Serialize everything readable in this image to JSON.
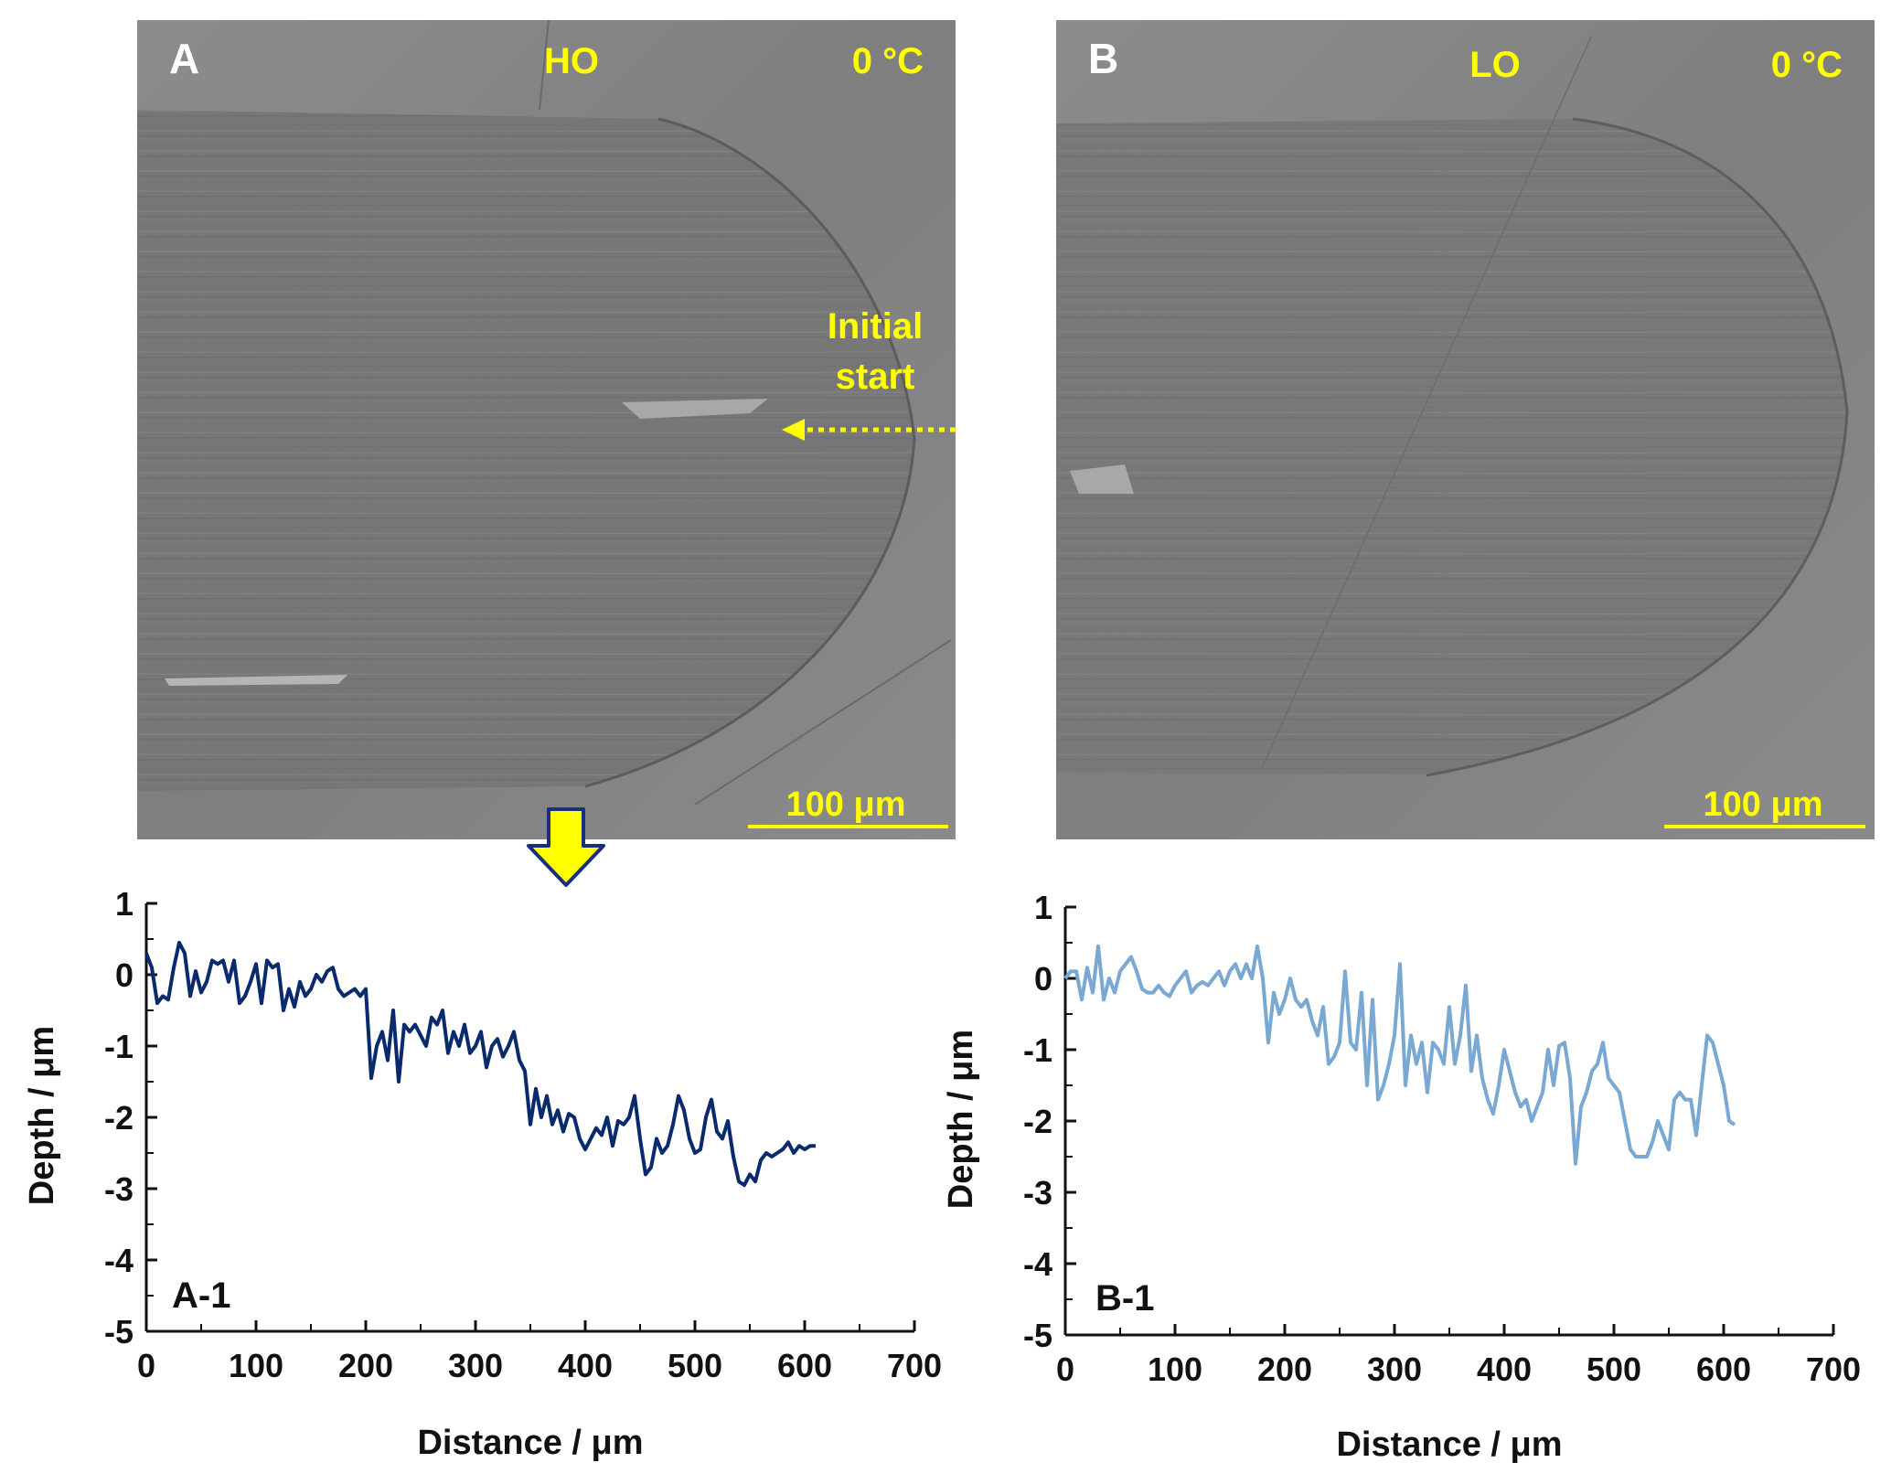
{
  "colors": {
    "label_yellow": "#ffff00",
    "sem_background": "#8a8a8a",
    "series_A": "#0a2a6e",
    "series_B": "#79a8d3"
  },
  "panels": [
    {
      "letter": "A",
      "sample": "HO",
      "temperature": "0 °C",
      "scale_bar": "100 μm",
      "annotation": [
        "Initial",
        "start"
      ]
    },
    {
      "letter": "B",
      "sample": "LO",
      "temperature": "0 °C",
      "scale_bar": "100 μm"
    }
  ],
  "chart_data": [
    {
      "type": "line",
      "panel_label": "A-1",
      "xlabel": "Distance / μm",
      "ylabel": "Depth / μm",
      "xlim": [
        0,
        700
      ],
      "ylim": [
        -5,
        1
      ],
      "xticks": [
        "0",
        "100",
        "200",
        "300",
        "400",
        "500",
        "600",
        "700"
      ],
      "yticks": [
        "1",
        "0",
        "-1",
        "-2",
        "-3",
        "-4",
        "-5"
      ],
      "color": "#0a2a6e",
      "series": [
        {
          "x": [
            0,
            5,
            10,
            15,
            20,
            25,
            30,
            35,
            40,
            45,
            50,
            55,
            60,
            65,
            70,
            75,
            80,
            85,
            90,
            95,
            100,
            105,
            110,
            115,
            120,
            125,
            130,
            135,
            140,
            145,
            150,
            155,
            160,
            165,
            170,
            175,
            180,
            185,
            190,
            195,
            200,
            205,
            210,
            215,
            220,
            225,
            230,
            235,
            240,
            245,
            250,
            255,
            260,
            265,
            270,
            275,
            280,
            285,
            290,
            295,
            300,
            305,
            310,
            315,
            320,
            325,
            330,
            335,
            340,
            345,
            350,
            355,
            360,
            365,
            370,
            375,
            380,
            385,
            390,
            395,
            400,
            405,
            410,
            415,
            420,
            425,
            430,
            435,
            440,
            445,
            450,
            455,
            460,
            465,
            470,
            475,
            480,
            485,
            490,
            495,
            500,
            505,
            510,
            515,
            520,
            525,
            530,
            535,
            540,
            545,
            550,
            555,
            560,
            565,
            570,
            575,
            580,
            585,
            590,
            595,
            600,
            605,
            610
          ],
          "y": [
            0.3,
            0.1,
            -0.4,
            -0.3,
            -0.35,
            0.1,
            0.45,
            0.3,
            -0.3,
            0.05,
            -0.25,
            -0.1,
            0.2,
            0.15,
            0.2,
            -0.1,
            0.2,
            -0.4,
            -0.3,
            -0.1,
            0.15,
            -0.4,
            0.2,
            0.1,
            0.15,
            -0.5,
            -0.2,
            -0.45,
            -0.1,
            -0.3,
            -0.2,
            0.0,
            -0.1,
            0.05,
            0.1,
            -0.2,
            -0.3,
            -0.25,
            -0.2,
            -0.3,
            -0.2,
            -1.45,
            -1.0,
            -0.8,
            -1.2,
            -0.5,
            -1.5,
            -0.7,
            -0.8,
            -0.7,
            -0.85,
            -1.0,
            -0.6,
            -0.7,
            -0.5,
            -1.1,
            -0.8,
            -1.0,
            -0.7,
            -1.1,
            -1.0,
            -0.8,
            -1.3,
            -1.0,
            -0.9,
            -1.15,
            -1.0,
            -0.8,
            -1.2,
            -1.35,
            -2.1,
            -1.6,
            -2.0,
            -1.7,
            -2.1,
            -1.9,
            -2.2,
            -1.95,
            -2.0,
            -2.3,
            -2.45,
            -2.3,
            -2.15,
            -2.25,
            -2.0,
            -2.4,
            -2.05,
            -2.1,
            -2.0,
            -1.7,
            -2.3,
            -2.8,
            -2.7,
            -2.3,
            -2.5,
            -2.4,
            -2.1,
            -1.7,
            -1.9,
            -2.3,
            -2.5,
            -2.45,
            -2.0,
            -1.75,
            -2.2,
            -2.3,
            -2.05,
            -2.55,
            -2.9,
            -2.95,
            -2.8,
            -2.9,
            -2.6,
            -2.5,
            -2.55,
            -2.5,
            -2.45,
            -2.35,
            -2.5,
            -2.4,
            -2.45,
            -2.4,
            -2.4
          ]
        }
      ]
    },
    {
      "type": "line",
      "panel_label": "B-1",
      "xlabel": "Distance / μm",
      "ylabel": "Depth / μm",
      "xlim": [
        0,
        700
      ],
      "ylim": [
        -5,
        1
      ],
      "xticks": [
        "0",
        "100",
        "200",
        "300",
        "400",
        "500",
        "600",
        "700"
      ],
      "yticks": [
        "1",
        "0",
        "-1",
        "-2",
        "-3",
        "-4",
        "-5"
      ],
      "color": "#79a8d3",
      "series": [
        {
          "x": [
            0,
            5,
            10,
            15,
            20,
            25,
            30,
            35,
            40,
            45,
            50,
            55,
            60,
            65,
            70,
            75,
            80,
            85,
            90,
            95,
            100,
            105,
            110,
            115,
            120,
            125,
            130,
            135,
            140,
            145,
            150,
            155,
            160,
            165,
            170,
            175,
            180,
            185,
            190,
            195,
            200,
            205,
            210,
            215,
            220,
            225,
            230,
            235,
            240,
            245,
            250,
            255,
            260,
            265,
            270,
            275,
            280,
            285,
            290,
            295,
            300,
            305,
            310,
            315,
            320,
            325,
            330,
            335,
            340,
            345,
            350,
            355,
            360,
            365,
            370,
            375,
            380,
            385,
            390,
            395,
            400,
            405,
            410,
            415,
            420,
            425,
            430,
            435,
            440,
            445,
            450,
            455,
            460,
            465,
            470,
            475,
            480,
            485,
            490,
            495,
            500,
            505,
            510,
            515,
            520,
            525,
            530,
            535,
            540,
            545,
            550,
            555,
            560,
            565,
            570,
            575,
            580,
            585,
            590,
            595,
            600,
            605,
            610
          ],
          "y": [
            0.0,
            0.1,
            0.1,
            -0.3,
            0.15,
            -0.2,
            0.45,
            -0.3,
            0.0,
            -0.2,
            0.1,
            0.2,
            0.3,
            0.1,
            -0.15,
            -0.2,
            -0.2,
            -0.1,
            -0.2,
            -0.25,
            -0.1,
            0.0,
            0.1,
            -0.2,
            -0.1,
            -0.05,
            -0.1,
            0.0,
            0.1,
            -0.1,
            0.1,
            0.2,
            0.0,
            0.2,
            0.0,
            0.45,
            0.0,
            -0.9,
            -0.2,
            -0.5,
            -0.3,
            0.0,
            -0.3,
            -0.4,
            -0.3,
            -0.6,
            -0.8,
            -0.4,
            -1.2,
            -1.1,
            -0.9,
            0.1,
            -0.9,
            -1.0,
            -0.2,
            -1.5,
            -0.3,
            -1.7,
            -1.5,
            -1.2,
            -0.8,
            0.2,
            -1.5,
            -0.8,
            -1.2,
            -0.9,
            -1.6,
            -0.9,
            -1.0,
            -1.2,
            -0.4,
            -1.2,
            -0.8,
            -0.1,
            -1.3,
            -0.8,
            -1.4,
            -1.7,
            -1.9,
            -1.5,
            -1.0,
            -1.3,
            -1.6,
            -1.8,
            -1.7,
            -2.0,
            -1.8,
            -1.6,
            -1.0,
            -1.5,
            -0.95,
            -0.9,
            -1.4,
            -2.6,
            -1.8,
            -1.6,
            -1.3,
            -1.2,
            -0.9,
            -1.4,
            -1.5,
            -1.6,
            -2.0,
            -2.4,
            -2.5,
            -2.5,
            -2.5,
            -2.3,
            -2.0,
            -2.2,
            -2.4,
            -1.7,
            -1.6,
            -1.7,
            -1.7,
            -2.2,
            -1.5,
            -0.8,
            -0.9,
            -1.2,
            -1.5,
            -2.0,
            -2.05
          ]
        }
      ]
    }
  ]
}
